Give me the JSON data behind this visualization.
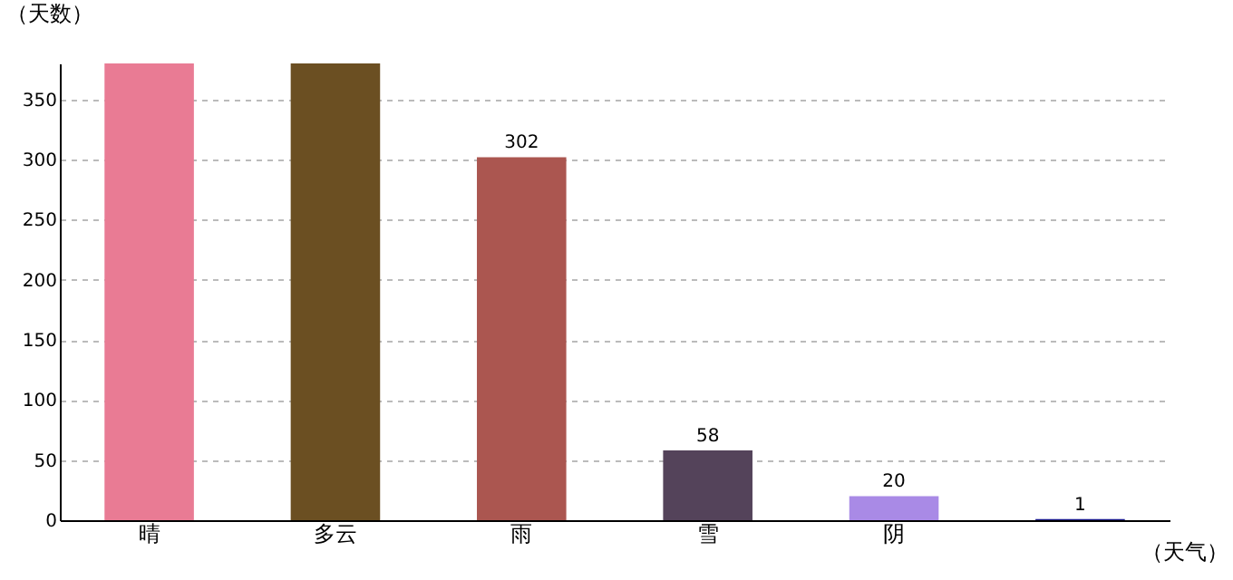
{
  "chart_data": {
    "type": "bar",
    "xlabel": "（天气）",
    "ylabel": "（天数）",
    "categories": [
      "晴",
      "多云",
      "雨",
      "雪",
      "阴",
      null
    ],
    "values": [
      380,
      380,
      302,
      58,
      20,
      1
    ],
    "colors": [
      "#e97b94",
      "#6b4f22",
      "#ab5650",
      "#54435a",
      "#a98ae6",
      "#1a1a8c"
    ],
    "value_labels": [
      null,
      null,
      "302",
      "58",
      "20",
      "1"
    ],
    "ylim": [
      0,
      380
    ],
    "yticks": [
      0,
      50,
      100,
      150,
      200,
      250,
      300,
      350
    ],
    "grid": "y"
  }
}
